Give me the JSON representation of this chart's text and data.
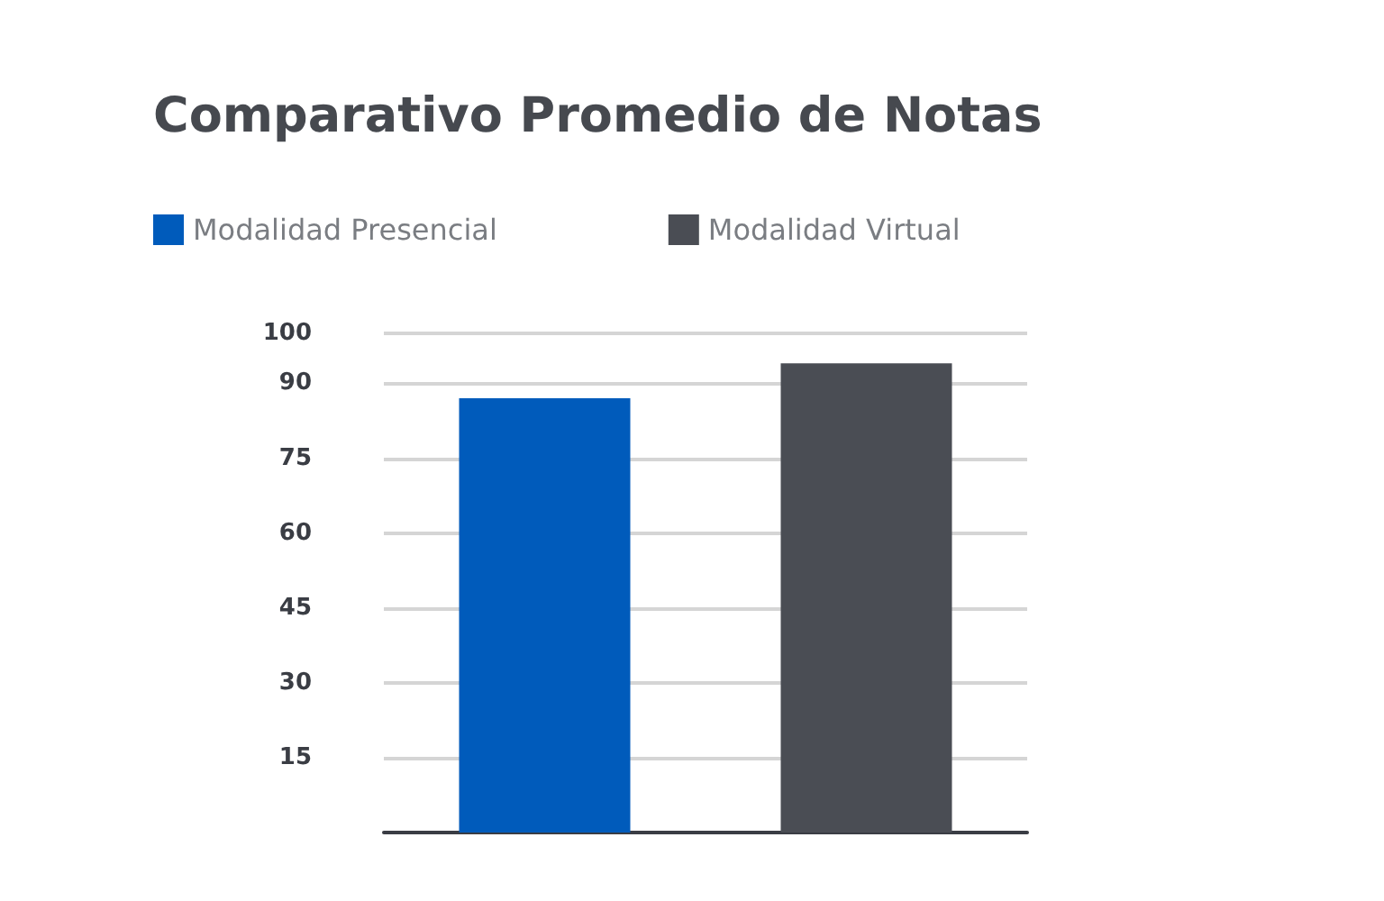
{
  "chart_data": {
    "type": "bar",
    "title": "Comparativo Promedio de Notas",
    "categories": [
      null,
      null
    ],
    "series": [
      {
        "name": "Modalidad Presencial",
        "color": "#005bbb",
        "values": [
          87,
          null
        ]
      },
      {
        "name": "Modalidad Virtual",
        "color": "#4a4d54",
        "values": [
          null,
          94
        ]
      }
    ],
    "ylim": [
      0,
      100
    ],
    "yticks": [
      15,
      30,
      45,
      60,
      75,
      90,
      100
    ],
    "grid": "y",
    "legend": "top left"
  }
}
